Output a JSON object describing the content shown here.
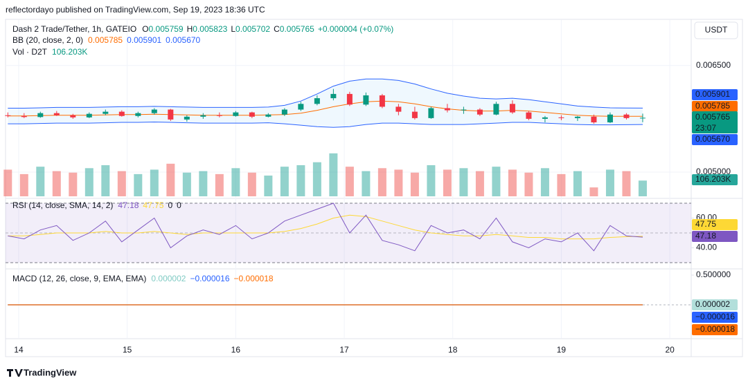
{
  "header": {
    "publisher": "reflectordayo published on TradingView.com, Sep 19, 2023 18:36 UTC",
    "currency_button": "USDT",
    "footer": "TradingView"
  },
  "chart_data": [
    {
      "type": "candlestick",
      "title": "Dash 2 Trade/Tether, 1h, GATEIO",
      "x": [
        13.9,
        14.05,
        14.2,
        14.35,
        14.5,
        14.65,
        14.8,
        14.95,
        15.1,
        15.25,
        15.4,
        15.55,
        15.7,
        15.85,
        16,
        16.15,
        16.3,
        16.45,
        16.6,
        16.75,
        16.9,
        17.05,
        17.2,
        17.35,
        17.5,
        17.65,
        17.8,
        17.95,
        18.1,
        18.25,
        18.4,
        18.55,
        18.7,
        18.85,
        19,
        19.15,
        19.3,
        19.45,
        19.6,
        19.75
      ],
      "xlim": [
        13.879,
        20.197
      ],
      "xticks": [
        14,
        15,
        16,
        17,
        18,
        19,
        20
      ],
      "open": [
        0.0058,
        0.00579,
        0.005775,
        0.00583,
        0.0058,
        0.00577,
        0.00582,
        0.00585,
        0.00579,
        0.00583,
        0.00588,
        0.00574,
        0.00578,
        0.0058,
        0.00579,
        0.00584,
        0.00578,
        0.00581,
        0.00588,
        0.00596,
        0.00604,
        0.0061,
        0.00595,
        0.00608,
        0.00592,
        0.00585,
        0.00576,
        0.0059,
        0.00587,
        0.00588,
        0.00581,
        0.00596,
        0.00584,
        0.00575,
        0.00577,
        0.00576,
        0.00578,
        0.0057,
        0.00581,
        0.005759
      ],
      "high": [
        0.00584,
        0.00583,
        0.00585,
        0.00586,
        0.00582,
        0.00584,
        0.00588,
        0.00587,
        0.00585,
        0.0059,
        0.00589,
        0.0058,
        0.00583,
        0.00584,
        0.00586,
        0.00585,
        0.00583,
        0.0059,
        0.00599,
        0.00608,
        0.00617,
        0.00613,
        0.00612,
        0.0061,
        0.00596,
        0.00592,
        0.00592,
        0.00596,
        0.00592,
        0.0059,
        0.00599,
        0.00601,
        0.00586,
        0.00579,
        0.0058,
        0.00579,
        0.00581,
        0.00584,
        0.00583,
        0.005823
      ],
      "low": [
        0.00577,
        0.00576,
        0.005765,
        0.00579,
        0.00575,
        0.00576,
        0.0058,
        0.00578,
        0.00577,
        0.00581,
        0.00572,
        0.00571,
        0.00575,
        0.00577,
        0.00578,
        0.00576,
        0.00577,
        0.00579,
        0.00586,
        0.00594,
        0.00601,
        0.00593,
        0.00593,
        0.0059,
        0.0058,
        0.00574,
        0.00575,
        0.00584,
        0.00582,
        0.00579,
        0.0058,
        0.00582,
        0.00573,
        0.0057,
        0.00573,
        0.00572,
        0.00568,
        0.00569,
        0.00574,
        0.005702
      ],
      "close": [
        0.00579,
        0.005775,
        0.00583,
        0.0058,
        0.00577,
        0.00582,
        0.00585,
        0.00579,
        0.00583,
        0.00588,
        0.00574,
        0.00578,
        0.0058,
        0.00579,
        0.00584,
        0.00578,
        0.00581,
        0.00588,
        0.00596,
        0.00604,
        0.0061,
        0.00595,
        0.00608,
        0.00592,
        0.00585,
        0.00576,
        0.0059,
        0.00587,
        0.00588,
        0.00581,
        0.00596,
        0.00584,
        0.00575,
        0.00577,
        0.00576,
        0.00578,
        0.0057,
        0.00581,
        0.00576,
        0.005765
      ],
      "up_color": "#089981",
      "down_color": "#f23645",
      "ylim": [
        0.00465,
        0.00713
      ],
      "yticks": [
        {
          "value": 0.0065,
          "label": "0.006500"
        },
        {
          "value": 0.005,
          "label": "0.005000"
        }
      ],
      "grid": true,
      "ohlc_keys": [
        "O",
        "H",
        "L",
        "C"
      ],
      "ohlc_values": [
        0.005759,
        0.005823,
        0.005702,
        0.005765
      ],
      "change": "+0.000004 (+0.07%)",
      "countdown": "23:07",
      "bollinger": {
        "title": "BB (20, close, 2, 0)",
        "color_basis": "#ff6d00",
        "color_bands": "#2962ff",
        "basis": [
          0.00579,
          0.00579,
          0.005795,
          0.0058,
          0.0058,
          0.0058,
          0.005805,
          0.00581,
          0.00581,
          0.005815,
          0.00581,
          0.005805,
          0.0058,
          0.0058,
          0.0058,
          0.0058,
          0.005805,
          0.00581,
          0.00583,
          0.00587,
          0.00592,
          0.00596,
          0.00599,
          0.006,
          0.00599,
          0.00596,
          0.00592,
          0.00589,
          0.00587,
          0.00586,
          0.00586,
          0.00587,
          0.00586,
          0.00584,
          0.00582,
          0.0058,
          0.00579,
          0.005785,
          0.005785,
          0.005785
        ],
        "upper": [
          0.0059,
          0.0059,
          0.005905,
          0.00591,
          0.00591,
          0.00591,
          0.005915,
          0.00592,
          0.00592,
          0.005925,
          0.00592,
          0.005915,
          0.00591,
          0.00591,
          0.00591,
          0.00591,
          0.005915,
          0.00594,
          0.006,
          0.0061,
          0.00621,
          0.00628,
          0.00631,
          0.00631,
          0.00629,
          0.00624,
          0.00617,
          0.00611,
          0.00607,
          0.00604,
          0.00603,
          0.00604,
          0.00602,
          0.00599,
          0.00596,
          0.00593,
          0.005915,
          0.005905,
          0.005903,
          0.005901
        ],
        "lower": [
          0.00568,
          0.00568,
          0.005685,
          0.00569,
          0.00569,
          0.00569,
          0.005695,
          0.0057,
          0.0057,
          0.005705,
          0.0057,
          0.005695,
          0.00569,
          0.00569,
          0.00569,
          0.00569,
          0.005695,
          0.00568,
          0.00566,
          0.00564,
          0.00563,
          0.00564,
          0.00567,
          0.00569,
          0.00569,
          0.00568,
          0.00567,
          0.00567,
          0.00567,
          0.00568,
          0.00569,
          0.0057,
          0.0057,
          0.00569,
          0.00568,
          0.00567,
          0.005665,
          0.005665,
          0.005667,
          0.00567
        ],
        "readouts": [
          {
            "value": 0.005785,
            "label": "0.005785"
          },
          {
            "value": 0.005901,
            "label": "0.005901"
          },
          {
            "value": 0.00567,
            "label": "0.005670"
          }
        ]
      },
      "volume": {
        "title": "Vol · D2T",
        "ylim": [
          0,
          350000
        ],
        "values": [
          180000,
          150000,
          200000,
          170000,
          160000,
          190000,
          210000,
          170000,
          150000,
          180000,
          220000,
          160000,
          170000,
          150000,
          190000,
          160000,
          140000,
          200000,
          210000,
          230000,
          290000,
          200000,
          170000,
          190000,
          180000,
          160000,
          210000,
          180000,
          190000,
          170000,
          200000,
          180000,
          160000,
          190000,
          150000,
          170000,
          60000,
          180000,
          170000,
          106203
        ],
        "readout": {
          "value": 106203,
          "label": "106.203K"
        }
      }
    },
    {
      "type": "line",
      "title": "RSI (14, close, SMA, 14, 2)",
      "rsi": [
        48,
        46,
        52,
        55,
        45,
        50,
        58,
        44,
        52,
        60,
        40,
        48,
        52,
        49,
        55,
        46,
        50,
        58,
        62,
        66,
        70,
        50,
        62,
        45,
        42,
        38,
        55,
        50,
        52,
        46,
        60,
        44,
        40,
        46,
        44,
        50,
        38,
        55,
        48,
        47.18
      ],
      "sma": [
        48,
        48,
        49,
        50,
        50,
        50,
        51,
        50,
        50,
        51,
        50,
        49,
        50,
        50,
        50,
        50,
        50,
        51,
        53,
        56,
        60,
        62,
        61,
        58,
        55,
        52,
        50,
        49,
        48,
        48,
        49,
        48,
        47,
        47,
        46,
        46,
        46,
        47,
        47.5,
        47.75
      ],
      "rsi_color": "#7e57c2",
      "sma_color": "#fdd835",
      "readouts": [
        47.18,
        47.75,
        0,
        0
      ],
      "ylim": [
        26.3,
        72.8
      ],
      "yticks": [
        {
          "value": 60,
          "label": "60.00"
        },
        {
          "value": 40,
          "label": "40.00"
        }
      ],
      "levels": [
        70,
        50,
        30
      ]
    },
    {
      "type": "macd",
      "title": "MACD (12, 26, close, 9, EMA, EMA)",
      "readouts": [
        {
          "value": 2e-06,
          "label": "0.000002"
        },
        {
          "value": -1.6e-05,
          "label": "−0.000016"
        },
        {
          "value": -1.8e-05,
          "label": "−0.000018"
        }
      ],
      "colors": [
        "#b2dfdb",
        "#2962ff",
        "#ff6d00"
      ],
      "ylim": [
        -0.547,
        0.593
      ],
      "yticks": [
        {
          "value": 0.5,
          "label": "0.500000"
        }
      ]
    }
  ]
}
